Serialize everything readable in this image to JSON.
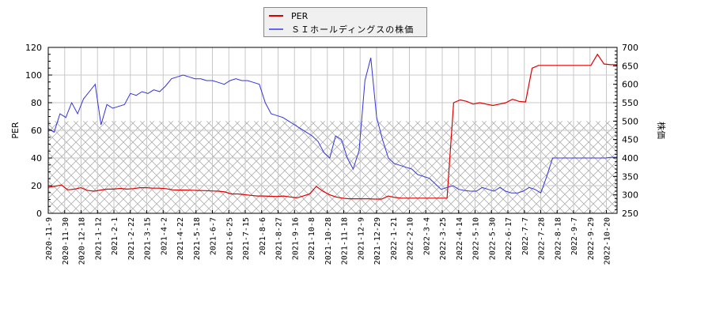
{
  "chart_data": {
    "type": "line",
    "title": "",
    "legend": {
      "position": "top-center",
      "entries": [
        "PER",
        "ＳＩホールディングスの株価"
      ]
    },
    "xlabel": "",
    "ylabel": "PER",
    "y2label": "株価",
    "ylim": [
      0,
      120
    ],
    "y2lim": [
      250,
      700
    ],
    "yticks": [
      0,
      20,
      40,
      60,
      80,
      100,
      120
    ],
    "y2ticks": [
      250,
      300,
      350,
      400,
      450,
      500,
      550,
      600,
      650,
      700
    ],
    "grid": true,
    "hatched_region": {
      "axis": "y2",
      "from": 250,
      "to": 500
    },
    "x_tick_labels": [
      "2020-11-9",
      "2020-11-30",
      "2020-12-18",
      "2021-1-12",
      "2021-2-1",
      "2021-2-22",
      "2021-3-15",
      "2021-4-2",
      "2021-4-22",
      "2021-5-18",
      "2021-6-7",
      "2021-6-25",
      "2021-7-15",
      "2021-8-6",
      "2021-8-27",
      "2021-9-16",
      "2021-10-8",
      "2021-10-28",
      "2021-11-18",
      "2021-12-9",
      "2021-12-29",
      "2022-1-21",
      "2022-2-10",
      "2022-3-4",
      "2022-3-25",
      "2022-4-14",
      "2022-5-10",
      "2022-5-30",
      "2022-6-17",
      "2022-7-7",
      "2022-7-28",
      "2022-8-18",
      "2022-9-7",
      "2022-9-29",
      "2022-10-20"
    ],
    "series": [
      {
        "name": "PER",
        "color": "#dd0000",
        "axis": "y",
        "values": [
          19,
          19.5,
          20.5,
          17,
          17.5,
          18.5,
          16.5,
          16,
          16.8,
          17.5,
          17.5,
          18,
          17.5,
          17.8,
          18.5,
          18.5,
          18.2,
          18.2,
          17.8,
          17,
          16.8,
          16.8,
          16.7,
          16.5,
          16.4,
          16.2,
          16,
          15.5,
          14,
          14,
          13.5,
          13,
          12.5,
          12.5,
          12.3,
          12.2,
          12.5,
          11.8,
          11.2,
          12.5,
          14,
          19.5,
          16,
          13.5,
          11.8,
          11,
          10.5,
          10.5,
          10.5,
          10.5,
          10.3,
          10.3,
          12.5,
          11.5,
          11,
          11,
          11,
          11,
          11,
          11,
          11,
          11,
          80,
          82,
          81,
          79,
          80,
          79,
          78,
          79,
          80,
          82.5,
          81,
          80.5,
          105,
          107,
          107,
          107,
          107,
          107,
          107,
          107,
          107,
          107,
          115,
          108,
          107.5,
          107.5
        ]
      },
      {
        "name": "ＳＩホールディングスの株価",
        "color": "#3333dd",
        "axis": "y2",
        "values": [
          480,
          470,
          520,
          510,
          550,
          520,
          560,
          580,
          600,
          490,
          545,
          535,
          540,
          545,
          575,
          570,
          580,
          575,
          585,
          580,
          595,
          615,
          620,
          625,
          620,
          615,
          615,
          610,
          610,
          605,
          600,
          610,
          615,
          610,
          610,
          605,
          600,
          550,
          520,
          515,
          510,
          500,
          490,
          480,
          470,
          460,
          445,
          415,
          400,
          460,
          450,
          400,
          370,
          420,
          610,
          672,
          510,
          450,
          400,
          385,
          380,
          375,
          370,
          355,
          350,
          345,
          330,
          315,
          320,
          325,
          315,
          312,
          310,
          310,
          320,
          315,
          310,
          320,
          310,
          305,
          305,
          310,
          320,
          315,
          305,
          350,
          400,
          400,
          400,
          400,
          400,
          400,
          400,
          400,
          400,
          400,
          402,
          402
        ]
      }
    ]
  }
}
